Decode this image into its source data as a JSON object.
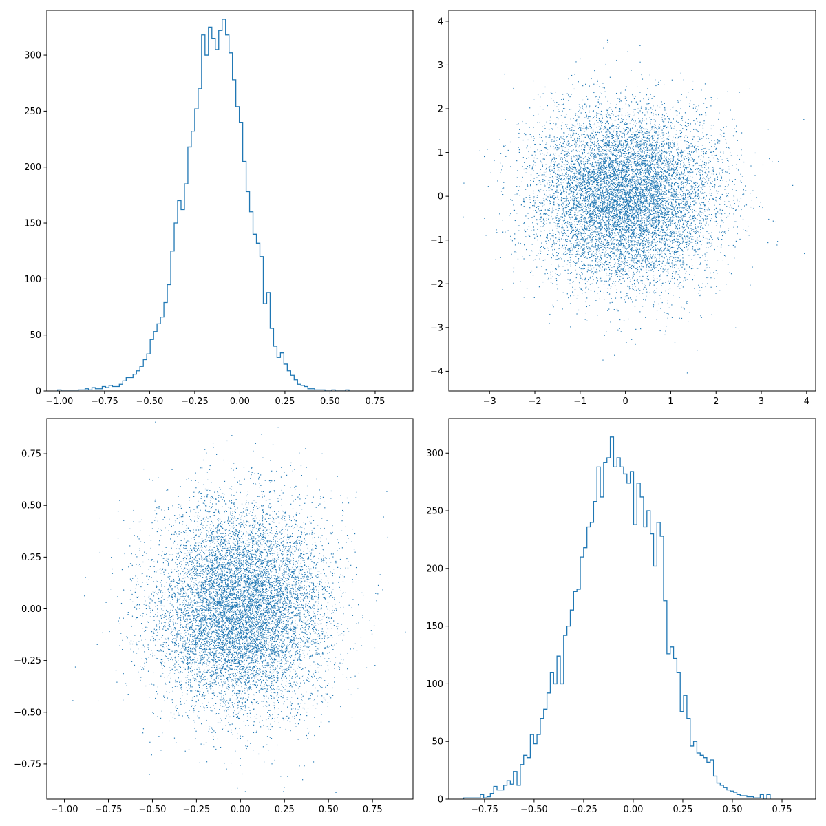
{
  "style": {
    "series_color": "#1f77b4",
    "axes_color": "#000000"
  },
  "chart_data": [
    {
      "id": "top-left",
      "type": "histogram",
      "title": "",
      "xlabel": "",
      "ylabel": "",
      "xlim": [
        -1.07,
        0.96
      ],
      "ylim": [
        0,
        340
      ],
      "xticks": [
        -1.0,
        -0.75,
        -0.5,
        -0.25,
        0.0,
        0.25,
        0.5,
        0.75
      ],
      "xtick_labels": [
        "−1.00",
        "−0.75",
        "−0.50",
        "−0.25",
        "0.00",
        "0.25",
        "0.50",
        "0.75"
      ],
      "yticks": [
        0,
        50,
        100,
        150,
        200,
        250,
        300
      ],
      "ytick_labels": [
        "0",
        "50",
        "100",
        "150",
        "200",
        "250",
        "300"
      ],
      "bin_start": -1.01,
      "bin_width": 0.019,
      "counts": [
        1,
        0,
        0,
        0,
        0,
        0,
        1,
        1,
        2,
        1,
        3,
        2,
        2,
        4,
        3,
        5,
        4,
        4,
        6,
        9,
        12,
        12,
        15,
        18,
        22,
        28,
        33,
        46,
        53,
        60,
        66,
        79,
        95,
        125,
        150,
        170,
        162,
        185,
        218,
        232,
        252,
        270,
        318,
        300,
        325,
        315,
        305,
        322,
        332,
        318,
        302,
        278,
        254,
        240,
        205,
        178,
        160,
        140,
        132,
        120,
        78,
        88,
        56,
        40,
        30,
        34,
        24,
        18,
        14,
        10,
        6,
        5,
        4,
        2,
        2,
        1,
        1,
        1,
        0,
        0,
        1,
        0,
        0,
        0,
        1
      ]
    },
    {
      "id": "top-right",
      "type": "scatter",
      "title": "",
      "xlabel": "",
      "ylabel": "",
      "xlim": [
        -3.9,
        4.2
      ],
      "ylim": [
        -4.45,
        4.25
      ],
      "xticks": [
        -3,
        -2,
        -1,
        0,
        1,
        2,
        3,
        4
      ],
      "xtick_labels": [
        "−3",
        "−2",
        "−1",
        "0",
        "1",
        "2",
        "3",
        "4"
      ],
      "yticks": [
        -4,
        -3,
        -2,
        -1,
        0,
        1,
        2,
        3,
        4
      ],
      "ytick_labels": [
        "−4",
        "−3",
        "−2",
        "−1",
        "0",
        "1",
        "2",
        "3",
        "4"
      ],
      "n_points": 10000,
      "x_mean": 0.0,
      "x_std": 1.0,
      "y_mean": 0.0,
      "y_std": 1.0
    },
    {
      "id": "bottom-left",
      "type": "scatter",
      "title": "",
      "xlabel": "",
      "ylabel": "",
      "xlim": [
        -1.1,
        0.98
      ],
      "ylim": [
        -0.92,
        0.92
      ],
      "xticks": [
        -1.0,
        -0.75,
        -0.5,
        -0.25,
        0.0,
        0.25,
        0.5,
        0.75
      ],
      "xtick_labels": [
        "−1.00",
        "−0.75",
        "−0.50",
        "−0.25",
        "0.00",
        "0.25",
        "0.50",
        "0.75"
      ],
      "yticks": [
        -0.75,
        -0.5,
        -0.25,
        0.0,
        0.25,
        0.5,
        0.75
      ],
      "ytick_labels": [
        "−0.75",
        "−0.50",
        "−0.25",
        "0.00",
        "0.25",
        "0.50",
        "0.75"
      ],
      "n_points": 10000,
      "x_mean": 0.0,
      "x_std": 0.25,
      "y_mean": 0.0,
      "y_std": 0.25
    },
    {
      "id": "bottom-right",
      "type": "histogram",
      "title": "",
      "xlabel": "",
      "ylabel": "",
      "xlim": [
        -0.93,
        0.92
      ],
      "ylim": [
        0,
        330
      ],
      "xticks": [
        -0.75,
        -0.5,
        -0.25,
        0.0,
        0.25,
        0.5,
        0.75
      ],
      "xtick_labels": [
        "−0.75",
        "−0.50",
        "−0.25",
        "0.00",
        "0.25",
        "0.50",
        "0.75"
      ],
      "yticks": [
        0,
        50,
        100,
        150,
        200,
        250,
        300
      ],
      "ytick_labels": [
        "0",
        "50",
        "100",
        "150",
        "200",
        "250",
        "300"
      ],
      "bin_start": -0.855,
      "bin_width": 0.0168,
      "counts": [
        1,
        1,
        1,
        1,
        1,
        4,
        1,
        2,
        5,
        11,
        8,
        8,
        12,
        16,
        13,
        24,
        12,
        30,
        38,
        36,
        56,
        48,
        56,
        70,
        78,
        92,
        110,
        100,
        124,
        100,
        142,
        150,
        164,
        180,
        182,
        210,
        218,
        236,
        240,
        258,
        288,
        262,
        292,
        296,
        314,
        288,
        296,
        288,
        282,
        274,
        284,
        238,
        274,
        262,
        236,
        250,
        230,
        202,
        240,
        228,
        172,
        126,
        132,
        122,
        110,
        76,
        90,
        70,
        46,
        50,
        40,
        38,
        36,
        32,
        34,
        20,
        14,
        12,
        10,
        8,
        7,
        6,
        4,
        3,
        3,
        2,
        2,
        1,
        1,
        4,
        0,
        4
      ]
    }
  ]
}
